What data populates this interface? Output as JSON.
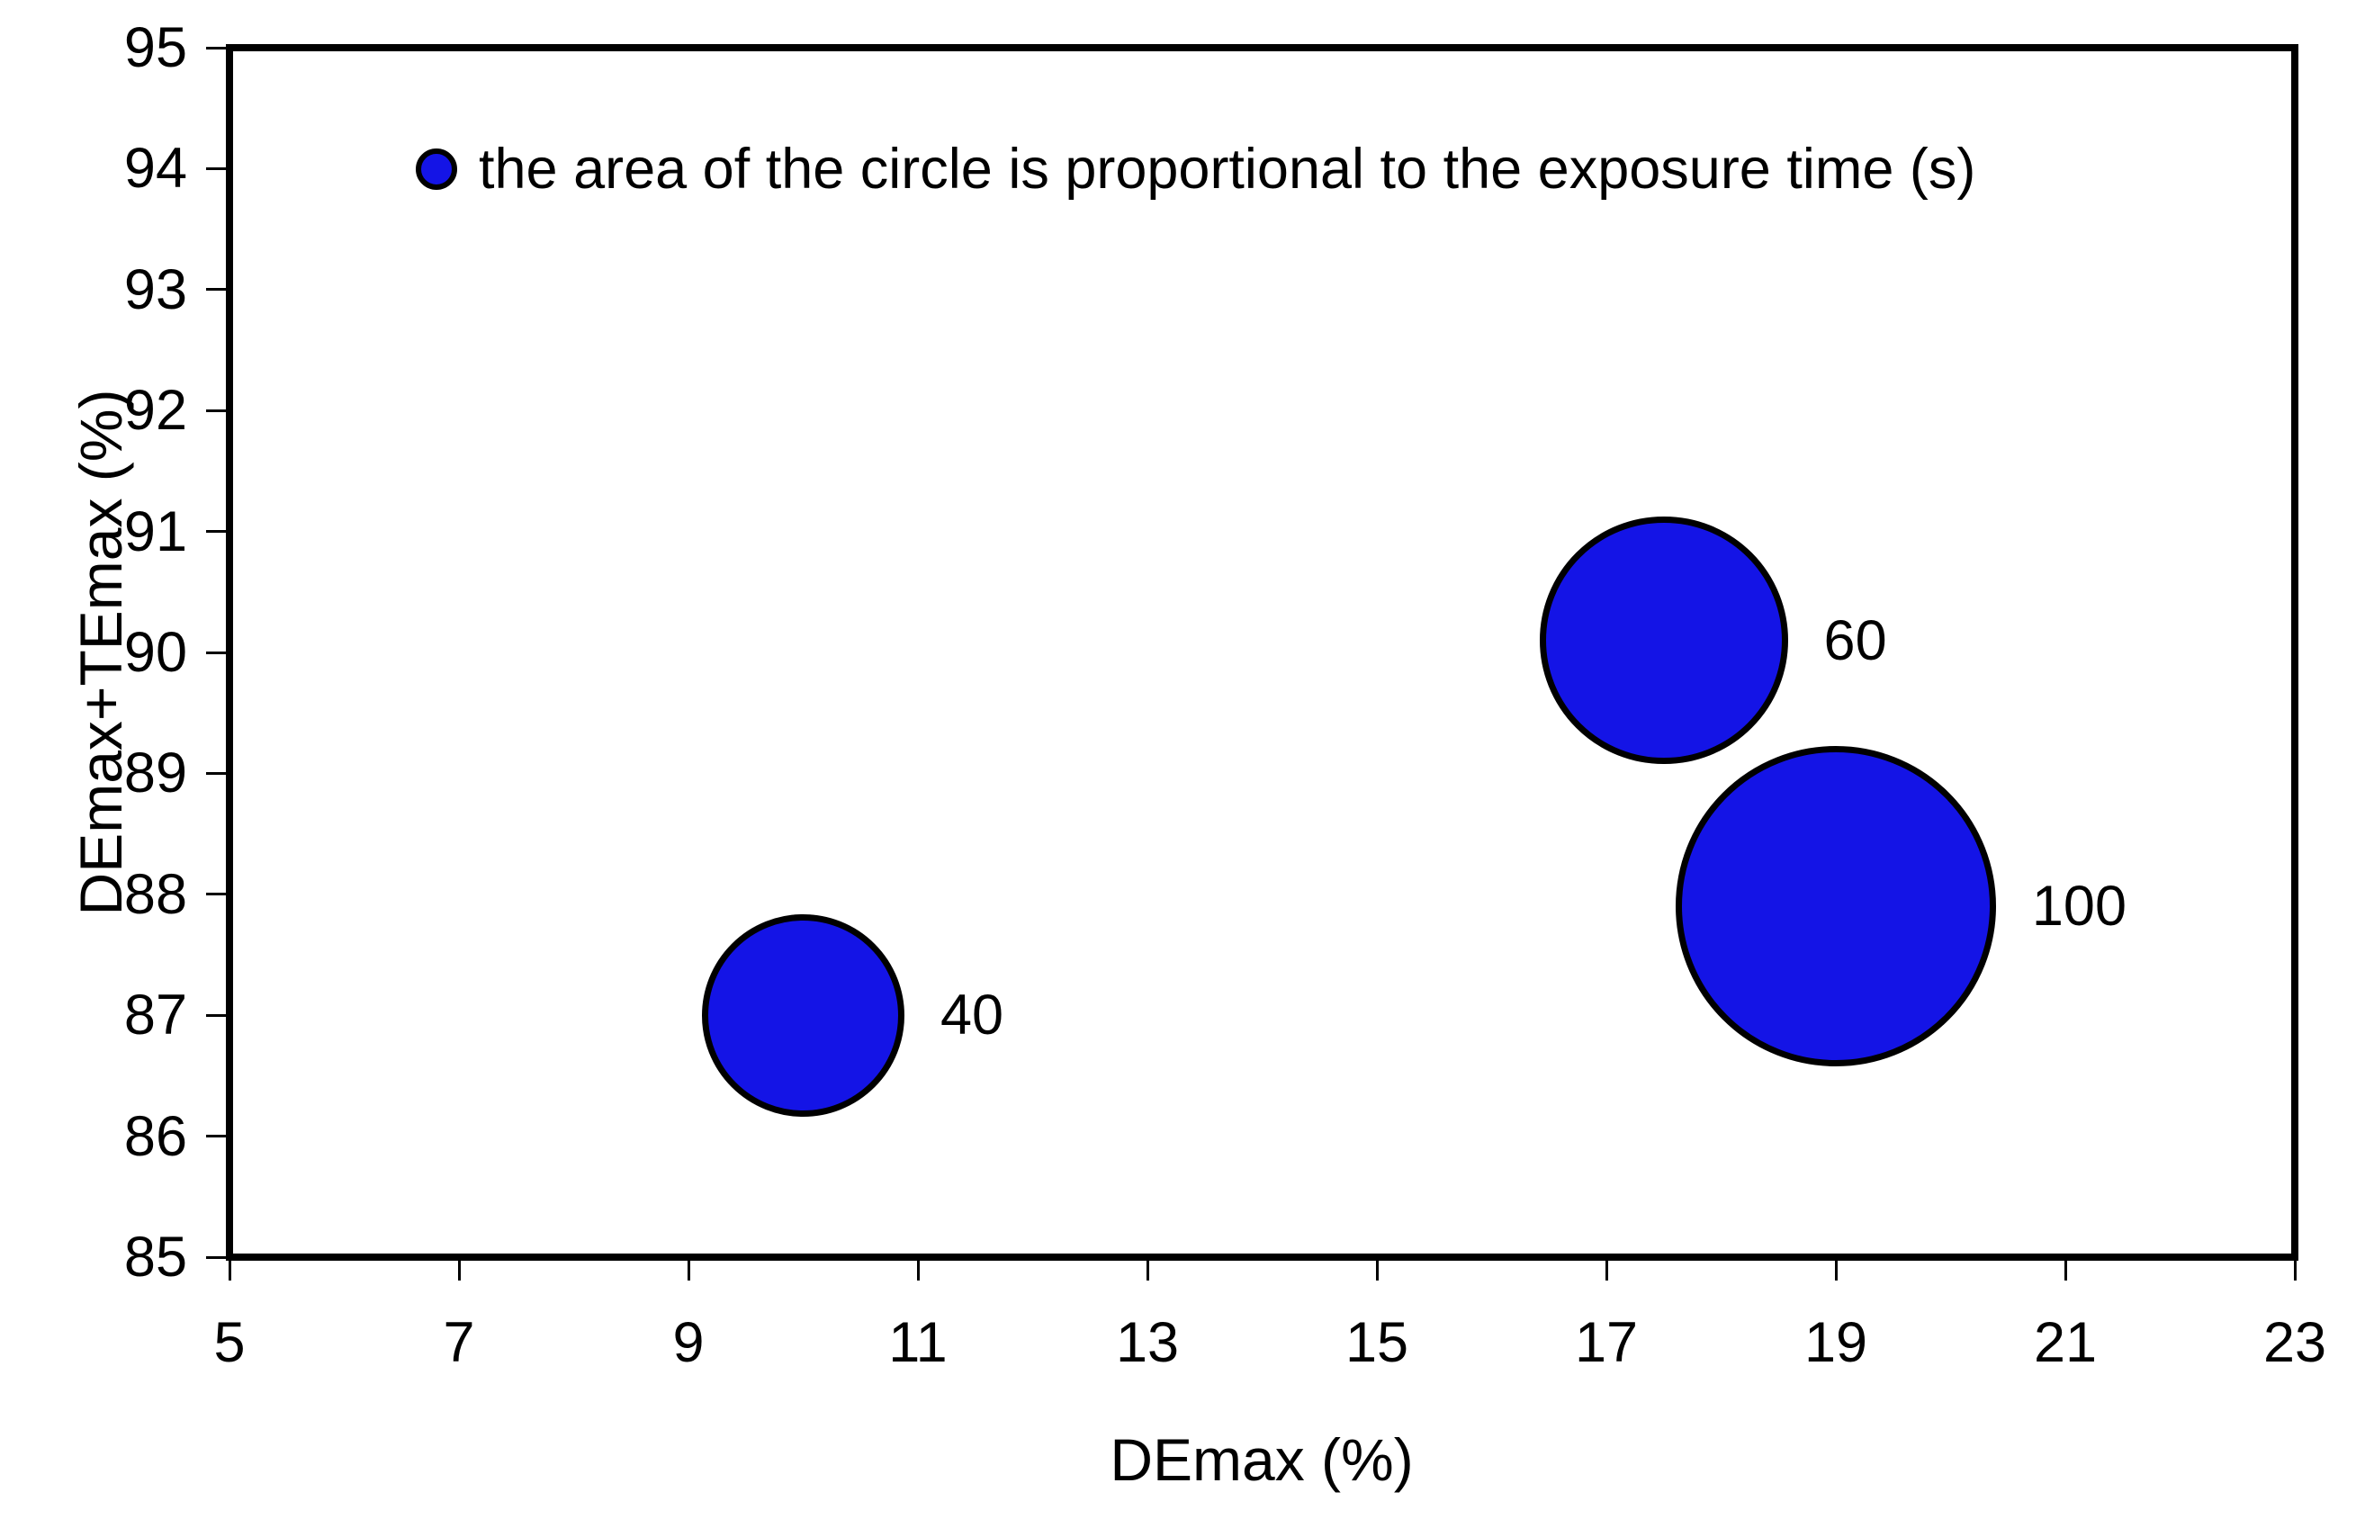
{
  "chart_data": {
    "type": "scatter",
    "subtype": "bubble",
    "title": "",
    "xlabel": "DEmax (%)",
    "ylabel": "DEmax+TEmax (%)",
    "xlim": [
      5,
      23
    ],
    "ylim": [
      85,
      95
    ],
    "x_ticks": [
      "5",
      "7",
      "9",
      "11",
      "13",
      "15",
      "17",
      "19",
      "21",
      "23"
    ],
    "y_ticks": [
      "85",
      "86",
      "87",
      "88",
      "89",
      "90",
      "91",
      "92",
      "93",
      "94",
      "95"
    ],
    "grid": "off",
    "legend_note": "the area of the circle is proportional to the exposure time (s)",
    "size_meaning": "exposure time (s)",
    "points": [
      {
        "x": 10.0,
        "y": 87.0,
        "exposure_time_s": 40,
        "label": "40"
      },
      {
        "x": 17.5,
        "y": 90.1,
        "exposure_time_s": 60,
        "label": "60"
      },
      {
        "x": 19.0,
        "y": 87.9,
        "exposure_time_s": 100,
        "label": "100"
      }
    ],
    "colors": {
      "bubble_fill": "#1414e6",
      "bubble_stroke": "#000000",
      "axis": "#000000",
      "text": "#000000",
      "background": "#ffffff"
    }
  }
}
